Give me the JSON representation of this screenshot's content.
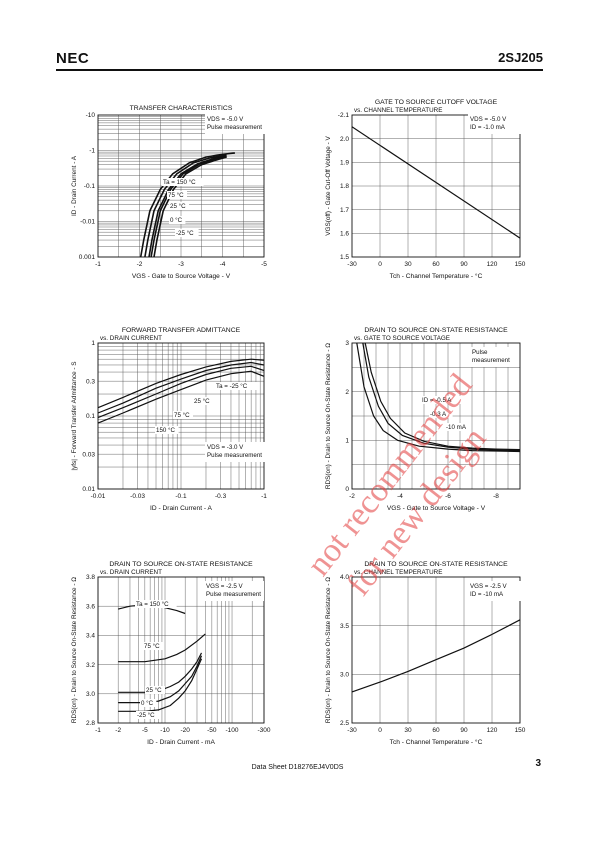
{
  "header": {
    "brand": "NEC",
    "part_number": "2SJ205"
  },
  "footer": {
    "doc": "Data Sheet  D18276EJ4V0DS",
    "page": "3"
  },
  "watermark": {
    "line1": "not recommended",
    "line2": "for new design",
    "color": "#e23b3b"
  },
  "chart_data": [
    {
      "id": "c1",
      "type": "line",
      "xscale": "linear",
      "yscale": "log",
      "title": "TRANSFER CHARACTERISTICS",
      "subtitle": "",
      "xlabel": "VGS - Gate to Source Voltage - V",
      "ylabel": "ID - Drain Current - A",
      "xlim": [
        -1,
        -5
      ],
      "ylim": [
        0.001,
        10
      ],
      "xticks": [
        "-1",
        "-2",
        "-3",
        "-4",
        "-5"
      ],
      "yticks": [
        "0.001",
        "-0.01",
        "-0.1",
        "-1",
        "-10"
      ],
      "legend": [
        "VDS = -5.0 V",
        "Pulse measurement"
      ],
      "series": [
        {
          "name": "Ta = 150 °C",
          "x": [
            -2.03,
            -2.1,
            -2.25,
            -2.5,
            -2.8,
            -3.2,
            -3.6,
            -4.0,
            -4.3
          ],
          "y": [
            0.001,
            0.003,
            0.02,
            0.08,
            0.22,
            0.45,
            0.65,
            0.78,
            0.85
          ]
        },
        {
          "name": "75 °C",
          "x": [
            -2.13,
            -2.2,
            -2.35,
            -2.6,
            -2.9,
            -3.3,
            -3.7,
            -4.1
          ],
          "y": [
            0.001,
            0.003,
            0.02,
            0.08,
            0.22,
            0.45,
            0.62,
            0.75
          ]
        },
        {
          "name": "25 °C",
          "x": [
            -2.23,
            -2.3,
            -2.45,
            -2.7,
            -3.0,
            -3.4,
            -3.8,
            -4.1
          ],
          "y": [
            0.001,
            0.003,
            0.02,
            0.08,
            0.22,
            0.42,
            0.6,
            0.7
          ]
        },
        {
          "name": "0 °C",
          "x": [
            -2.28,
            -2.35,
            -2.5,
            -2.75,
            -3.05,
            -3.45,
            -3.85,
            -4.1
          ],
          "y": [
            0.001,
            0.003,
            0.02,
            0.08,
            0.22,
            0.42,
            0.58,
            0.68
          ]
        },
        {
          "name": "-25 °C",
          "x": [
            -2.35,
            -2.42,
            -2.57,
            -2.82,
            -3.12,
            -3.5,
            -3.9,
            -4.1
          ],
          "y": [
            0.001,
            0.003,
            0.02,
            0.08,
            0.22,
            0.4,
            0.56,
            0.65
          ]
        }
      ],
      "annotations": [
        "Ta = 150 °C",
        "75 °C",
        "25 °C",
        "0 °C",
        "-25 °C"
      ]
    },
    {
      "id": "c2",
      "type": "line",
      "xscale": "linear",
      "yscale": "linear",
      "title": "GATE TO SOURCE CUTOFF VOLTAGE",
      "subtitle": "vs. CHANNEL TEMPERATURE",
      "xlabel": "Tch - Channel Temperature - °C",
      "ylabel": "VGS(off) - Gate Cut-Off Voltage - V",
      "xlim": [
        -30,
        150
      ],
      "ylim": [
        1.5,
        2.1
      ],
      "xticks": [
        "-30",
        "0",
        "30",
        "60",
        "90",
        "120",
        "150"
      ],
      "yticks": [
        "1.5",
        "1.6",
        "1.7",
        "1.8",
        "1.9",
        "2.0",
        "-2.1"
      ],
      "legend": [
        "VDS = -5.0 V",
        "ID = -1.0 mA"
      ],
      "series": [
        {
          "name": "",
          "x": [
            -30,
            150
          ],
          "y": [
            2.05,
            1.58
          ]
        }
      ],
      "annotations": []
    },
    {
      "id": "c3",
      "type": "line",
      "xscale": "log",
      "yscale": "log",
      "title": "FORWARD TRANSFER ADMITTANCE",
      "subtitle": "vs. DRAIN CURRENT",
      "xlabel": "ID - Drain Current - A",
      "ylabel": "|yfs| - Forward Transfer Admittance - S",
      "xlim": [
        0.01,
        1
      ],
      "ylim": [
        0.01,
        1
      ],
      "xticks": [
        "-0.01",
        "-0.03",
        "-0.1",
        "-0.3",
        "-1"
      ],
      "yticks": [
        "0.01",
        "0.03",
        "0.1",
        "0.3",
        "1"
      ],
      "legend": [
        "VDS = -3.0 V",
        "Pulse measurement"
      ],
      "series": [
        {
          "name": "Ta = -25 °C",
          "x": [
            0.01,
            0.02,
            0.05,
            0.1,
            0.2,
            0.4,
            0.7,
            1.0
          ],
          "y": [
            0.13,
            0.18,
            0.28,
            0.37,
            0.47,
            0.56,
            0.6,
            0.58
          ]
        },
        {
          "name": "25 °C",
          "x": [
            0.01,
            0.02,
            0.05,
            0.1,
            0.2,
            0.4,
            0.7,
            1.0
          ],
          "y": [
            0.11,
            0.15,
            0.24,
            0.32,
            0.42,
            0.5,
            0.54,
            0.5
          ]
        },
        {
          "name": "75 °C",
          "x": [
            0.01,
            0.02,
            0.05,
            0.1,
            0.2,
            0.4,
            0.7,
            1.0
          ],
          "y": [
            0.095,
            0.13,
            0.2,
            0.28,
            0.37,
            0.45,
            0.48,
            0.42
          ]
        },
        {
          "name": "150 °C",
          "x": [
            0.01,
            0.02,
            0.05,
            0.1,
            0.2,
            0.4,
            0.7,
            1.0
          ],
          "y": [
            0.08,
            0.11,
            0.17,
            0.23,
            0.31,
            0.38,
            0.41,
            0.35
          ]
        }
      ],
      "annotations": [
        "Ta = -25 °C",
        "25 °C",
        "75 °C",
        "150 °C"
      ]
    },
    {
      "id": "c4",
      "type": "line",
      "xscale": "linear",
      "yscale": "linear",
      "title": "DRAIN TO SOURCE ON-STATE RESISTANCE",
      "subtitle": "vs. GATE TO SOURCE VOLTAGE",
      "xlabel": "VGS - Gate to Source Voltage - V",
      "ylabel": "RDS(on) - Drain to Source On-State Resistance - Ω",
      "xlim": [
        -2,
        -9
      ],
      "ylim": [
        0,
        3
      ],
      "xticks": [
        "-2",
        "-4",
        "-6",
        "-8"
      ],
      "yticks": [
        "0",
        "1",
        "2",
        "3"
      ],
      "legend": [
        "Pulse",
        "measurement"
      ],
      "series": [
        {
          "name": "ID = -0.5 A",
          "x": [
            -2.55,
            -2.8,
            -3.2,
            -3.6,
            -4.2,
            -5,
            -6,
            -7,
            -8,
            -9
          ],
          "y": [
            3.0,
            2.4,
            1.8,
            1.45,
            1.15,
            0.98,
            0.88,
            0.84,
            0.82,
            0.81
          ]
        },
        {
          "name": "-0.3 A",
          "x": [
            -2.45,
            -2.7,
            -3.1,
            -3.5,
            -4.1,
            -5,
            -6,
            -7,
            -8,
            -9
          ],
          "y": [
            3.0,
            2.3,
            1.7,
            1.35,
            1.1,
            0.94,
            0.86,
            0.82,
            0.8,
            0.79
          ]
        },
        {
          "name": "-10 mA",
          "x": [
            -2.2,
            -2.5,
            -2.9,
            -3.3,
            -3.9,
            -4.8,
            -6,
            -7,
            -8,
            -9
          ],
          "y": [
            3.0,
            2.1,
            1.5,
            1.2,
            1.0,
            0.88,
            0.82,
            0.79,
            0.78,
            0.77
          ]
        }
      ],
      "annotations": [
        "ID = -0.5 A",
        "-0.3 A",
        "-10 mA"
      ]
    },
    {
      "id": "c5",
      "type": "line",
      "xscale": "log",
      "yscale": "linear",
      "title": "DRAIN TO SOURCE ON-STATE RESISTANCE",
      "subtitle": "vs. DRAIN CURRENT",
      "xlabel": "ID - Drain Current - mA",
      "ylabel": "RDS(on) - Drain to Source On-State Resistance - Ω",
      "xlim": [
        1,
        300
      ],
      "ylim": [
        2.8,
        3.8
      ],
      "xticks": [
        "-1",
        "-2",
        "-5",
        "-10",
        "-20",
        "-50",
        "-100",
        "-300"
      ],
      "yticks": [
        "2.8",
        "3.0",
        "3.2",
        "3.4",
        "3.6",
        "3.8"
      ],
      "legend": [
        "VGS = -2.5 V",
        "Pulse measurement"
      ],
      "series": [
        {
          "name": "Ta = 150 °C",
          "x": [
            2,
            3,
            5,
            8,
            10,
            15,
            20
          ],
          "y": [
            3.58,
            3.6,
            3.61,
            3.6,
            3.59,
            3.57,
            3.55
          ]
        },
        {
          "name": "75 °C",
          "x": [
            2,
            5,
            10,
            15,
            20,
            30,
            40
          ],
          "y": [
            3.22,
            3.22,
            3.24,
            3.27,
            3.3,
            3.36,
            3.41
          ]
        },
        {
          "name": "25 °C",
          "x": [
            2,
            5,
            8,
            12,
            16,
            20,
            25,
            30,
            35
          ],
          "y": [
            3.01,
            3.01,
            3.02,
            3.05,
            3.08,
            3.12,
            3.17,
            3.22,
            3.28
          ]
        },
        {
          "name": "0 °C",
          "x": [
            2,
            5,
            8,
            12,
            16,
            20,
            25,
            30,
            35
          ],
          "y": [
            2.94,
            2.94,
            2.95,
            2.98,
            3.02,
            3.07,
            3.12,
            3.19,
            3.26
          ]
        },
        {
          "name": "-25 °C",
          "x": [
            2,
            5,
            8,
            12,
            16,
            20,
            25,
            30,
            35
          ],
          "y": [
            2.88,
            2.88,
            2.89,
            2.92,
            2.97,
            3.02,
            3.09,
            3.17,
            3.24
          ]
        }
      ],
      "annotations": [
        "Ta = 150 °C",
        "75 °C",
        "25 °C",
        "0 °C",
        "-25 °C"
      ]
    },
    {
      "id": "c6",
      "type": "line",
      "xscale": "linear",
      "yscale": "linear",
      "title": "DRAIN TO SOURCE ON-STATE RESISTANCE",
      "subtitle": "vs. CHANNEL TEMPERATURE",
      "xlabel": "Tch - Channel Temperature - °C",
      "ylabel": "RDS(on) - Drain to Source On-State Resistance - Ω",
      "xlim": [
        -30,
        150
      ],
      "ylim": [
        2.5,
        4.0
      ],
      "xticks": [
        "-30",
        "0",
        "30",
        "60",
        "90",
        "120",
        "150"
      ],
      "yticks": [
        "2.5",
        "3.0",
        "3.5",
        "4.0"
      ],
      "legend": [
        "VGS = -2.5 V",
        "ID = -10 mA"
      ],
      "series": [
        {
          "name": "",
          "x": [
            -30,
            0,
            30,
            60,
            90,
            120,
            150
          ],
          "y": [
            2.82,
            2.92,
            3.03,
            3.15,
            3.27,
            3.41,
            3.56
          ]
        }
      ],
      "annotations": []
    }
  ]
}
